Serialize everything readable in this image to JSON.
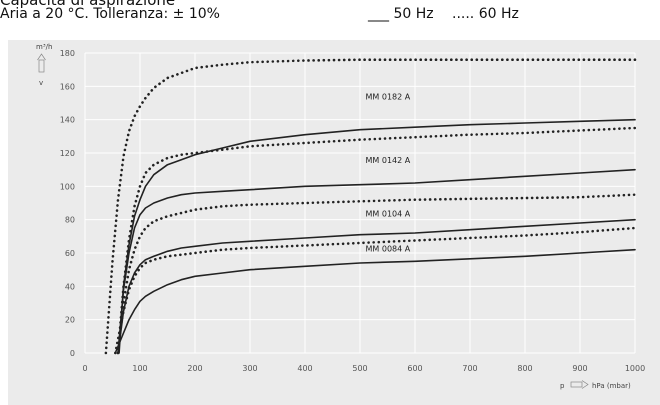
{
  "header": {
    "title": "Capacità di aspirazione",
    "subtitle": "Aria a 20 °C. Tolleranza: ± 10%",
    "legend_solid": "___ 50 Hz",
    "legend_dotted": "..... 60 Hz"
  },
  "chart_data": {
    "type": "line",
    "title": "Capacità di aspirazione",
    "subtitle": "Aria a 20 °C. Tolleranza: ± 10%",
    "ylabel": "m³/h",
    "xlabel": "p hPa (mbar)",
    "x_axis_prefix": "p",
    "x_axis_unit": "hPa (mbar)",
    "xlim": [
      0,
      1000
    ],
    "ylim": [
      0,
      180
    ],
    "x_ticks": [
      0,
      100,
      200,
      300,
      400,
      500,
      600,
      700,
      800,
      900,
      1000
    ],
    "y_ticks": [
      0,
      20,
      40,
      60,
      80,
      100,
      120,
      140,
      160,
      180
    ],
    "grid": true,
    "legend": [
      "___ 50 Hz",
      "..... 60 Hz"
    ],
    "colors": {
      "background": "#ebebeb",
      "grid": "#ffffff",
      "line": "#222222",
      "text": "#555555"
    },
    "curve_labels": [
      {
        "text": "MM 0182 A",
        "x": 510,
        "y": 152
      },
      {
        "text": "MM 0142 A",
        "x": 510,
        "y": 114
      },
      {
        "text": "MM 0104 A",
        "x": 510,
        "y": 82
      },
      {
        "text": "MM 0084 A",
        "x": 510,
        "y": 61
      }
    ],
    "series": [
      {
        "freq": "50 Hz",
        "style": "solid",
        "x": [
          62,
          70,
          80,
          90,
          100,
          110,
          125,
          150,
          175,
          200,
          250,
          300,
          400,
          500,
          600,
          700,
          800,
          900,
          1000
        ],
        "y": [
          0,
          40,
          65,
          82,
          92,
          100,
          107,
          113,
          116,
          119,
          123,
          127,
          131,
          134,
          135.5,
          137,
          138,
          139,
          140
        ]
      },
      {
        "freq": "60 Hz",
        "style": "dotted",
        "x": [
          38,
          50,
          60,
          70,
          80,
          90,
          100,
          110,
          125,
          150,
          175,
          200,
          250,
          300,
          400,
          500,
          600,
          700,
          800,
          900,
          1000
        ],
        "y": [
          0,
          55,
          92,
          118,
          133,
          142,
          148,
          153,
          159,
          165,
          168,
          171,
          173,
          174.5,
          175.5,
          176,
          176,
          176,
          176,
          176,
          176
        ]
      },
      {
        "freq": "50 Hz",
        "style": "solid",
        "x": [
          60,
          70,
          80,
          90,
          100,
          110,
          125,
          150,
          175,
          200,
          250,
          300,
          400,
          500,
          600,
          700,
          800,
          900,
          1000
        ],
        "y": [
          0,
          38,
          60,
          75,
          83,
          87,
          90,
          93,
          95,
          96,
          97,
          98,
          100,
          101,
          102,
          104,
          106,
          108,
          110
        ]
      },
      {
        "freq": "60 Hz",
        "style": "dotted",
        "x": [
          60,
          70,
          80,
          90,
          100,
          110,
          125,
          150,
          175,
          200,
          250,
          300,
          400,
          500,
          600,
          700,
          800,
          900,
          1000
        ],
        "y": [
          0,
          40,
          68,
          88,
          100,
          108,
          113,
          117,
          119,
          120,
          122,
          124,
          126,
          128,
          129.5,
          131,
          132,
          133.5,
          135
        ]
      },
      {
        "freq": "50 Hz",
        "style": "solid",
        "x": [
          60,
          70,
          80,
          90,
          100,
          110,
          125,
          150,
          175,
          200,
          250,
          300,
          400,
          500,
          600,
          700,
          800,
          900,
          1000
        ],
        "y": [
          0,
          25,
          40,
          48,
          53,
          56,
          58,
          61,
          63,
          64,
          66,
          67,
          69,
          71,
          72,
          74,
          76,
          78,
          80
        ]
      },
      {
        "freq": "60 Hz",
        "style": "dotted",
        "x": [
          60,
          70,
          80,
          90,
          100,
          110,
          125,
          150,
          175,
          200,
          250,
          300,
          400,
          500,
          600,
          700,
          800,
          900,
          1000
        ],
        "y": [
          0,
          30,
          50,
          62,
          70,
          75,
          79,
          82,
          84,
          86,
          88,
          89,
          90,
          91,
          92,
          92.5,
          93,
          93.5,
          95
        ]
      },
      {
        "freq": "50 Hz",
        "style": "solid",
        "x": [
          55,
          70,
          80,
          90,
          100,
          110,
          125,
          150,
          175,
          200,
          250,
          300,
          400,
          500,
          600,
          700,
          800,
          900,
          1000
        ],
        "y": [
          0,
          12,
          20,
          26,
          31,
          34,
          37,
          41,
          44,
          46,
          48,
          50,
          52,
          54,
          55,
          56.5,
          58,
          60,
          62
        ]
      },
      {
        "freq": "60 Hz",
        "style": "dotted",
        "x": [
          55,
          70,
          80,
          90,
          100,
          110,
          125,
          150,
          175,
          200,
          250,
          300,
          400,
          500,
          600,
          700,
          800,
          900,
          1000
        ],
        "y": [
          0,
          25,
          38,
          46,
          51,
          54,
          56,
          58,
          59,
          60,
          62,
          63,
          64.5,
          66,
          67.5,
          69,
          70.5,
          72.5,
          75
        ]
      },
      {
        "freq": "50 Hz",
        "style": "solid",
        "x": [
          1000
        ],
        "y": [
          176
        ]
      }
    ]
  }
}
